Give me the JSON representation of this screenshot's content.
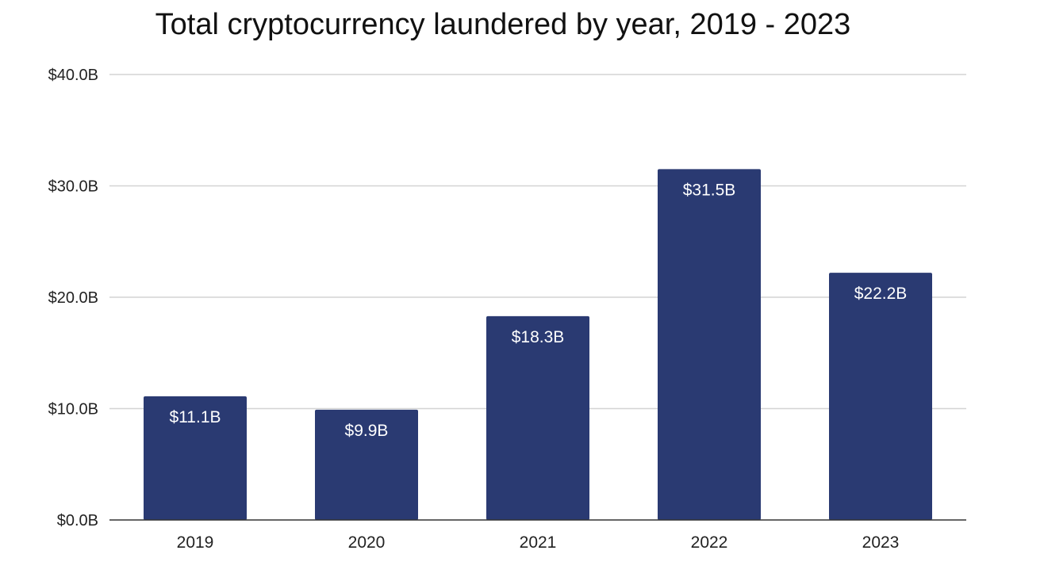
{
  "chart_data": {
    "type": "bar",
    "title": "Total cryptocurrency laundered by year, 2019 - 2023",
    "xlabel": "",
    "ylabel": "",
    "categories": [
      "2019",
      "2020",
      "2021",
      "2022",
      "2023"
    ],
    "values": [
      11.1,
      9.9,
      18.3,
      31.5,
      22.2
    ],
    "data_labels": [
      "$11.1B",
      "$9.9B",
      "$18.3B",
      "$31.5B",
      "$22.2B"
    ],
    "ylim": [
      0,
      40
    ],
    "yticks": [
      0,
      10,
      20,
      30,
      40
    ],
    "ytick_labels": [
      "$0.0B",
      "$10.0B",
      "$20.0B",
      "$30.0B",
      "$40.0B"
    ],
    "grid": true,
    "legend": "none",
    "bar_color": "#2a3a72"
  }
}
